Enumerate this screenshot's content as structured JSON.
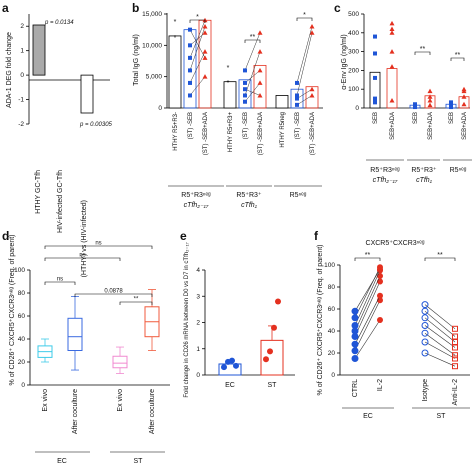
{
  "chart_data": [
    {
      "panel": "a",
      "type": "bar",
      "ylabel": "ADA-1 DEG fold change",
      "ylim": [
        -2,
        2.5
      ],
      "yticks": [
        -2,
        -1,
        0,
        1,
        2
      ],
      "categories": [
        "HTHY GC-Tfh",
        "HIV-infected GC-Tfh",
        "(HTHY) vs (HIV-infected)"
      ],
      "values": [
        2.05,
        null,
        -1.55
      ],
      "annotations": [
        "p = 0.0134",
        "p = 0.00305"
      ],
      "colors": {
        "bar1": "#aaaaaa",
        "bar2": "#ffffff"
      }
    },
    {
      "panel": "b",
      "type": "bar",
      "ylabel": "Total IgG (ng/ml)",
      "ylim": [
        0,
        15000
      ],
      "yticks": [
        0,
        5000,
        10000,
        15000
      ],
      "ytick_labels": [
        "0",
        "5,000",
        "10,000",
        "15,000"
      ],
      "categories": [
        "HTHY R5+R3-",
        "(ST) -SEB",
        "(ST) -SEB+ADA",
        "HTHY R5+R3+",
        "(ST) -SEB",
        "(ST) -SEB+ADA",
        "HTHY R5neg",
        "(ST) -SEB",
        "(ST) -SEB+ADA"
      ],
      "values": [
        11500,
        12500,
        14000,
        4200,
        4500,
        6800,
        2000,
        3000,
        3400
      ],
      "groups": [
        {
          "label": "R5⁺R3ⁿᵉᵍ",
          "sub": "cTfh₂₋₁₇"
        },
        {
          "label": "R5⁺R3⁺",
          "sub": "cTfh₁"
        },
        {
          "label": "R5ⁿᵉᵍ",
          "sub": ""
        }
      ],
      "significance": [
        "*",
        "**",
        "*"
      ],
      "asterisks_above": [
        "*",
        "*",
        "*",
        "*"
      ],
      "colors": {
        "blue": "#1f55d6",
        "red": "#e4301f"
      }
    },
    {
      "panel": "c",
      "type": "bar",
      "ylabel": "α-Env IgG (ng/ml)",
      "ylim": [
        0,
        500
      ],
      "yticks": [
        0,
        100,
        200,
        300,
        400,
        500
      ],
      "categories": [
        "SEB",
        "SEB+ADA",
        "SEB",
        "SEB+ADA",
        "SEB",
        "SEB+ADA"
      ],
      "values": [
        190,
        210,
        15,
        65,
        20,
        60
      ],
      "groups": [
        {
          "label": "R5⁺R3ⁿᵉᵍ",
          "sub": "cTfh₂₋₁₇"
        },
        {
          "label": "R5⁺R3⁺",
          "sub": "cTfh₁"
        },
        {
          "label": "R5ⁿᵉᵍ",
          "sub": ""
        }
      ],
      "significance": [
        "**",
        "**"
      ]
    },
    {
      "panel": "d",
      "type": "box",
      "ylabel": "% of CD26⁺ CXCR5⁺CXCR3ⁿᵉᵍ (Freq. of parent)",
      "ylim": [
        0,
        100
      ],
      "yticks": [
        0,
        20,
        40,
        60,
        80,
        100
      ],
      "categories": [
        "Ex vivo",
        "After coculture",
        "Ex vivo",
        "After coculture"
      ],
      "groups": [
        "EC",
        "ST"
      ],
      "series": [
        {
          "name": "EC Ex vivo",
          "min": 20,
          "q1": 24,
          "median": 29,
          "q3": 34,
          "max": 40,
          "color": "#3ecbe8"
        },
        {
          "name": "EC After coculture",
          "min": 13,
          "q1": 30,
          "median": 42,
          "q3": 58,
          "max": 77,
          "color": "#3a6ae0"
        },
        {
          "name": "ST Ex vivo",
          "min": 10,
          "q1": 15,
          "median": 19,
          "q3": 25,
          "max": 33,
          "color": "#f08ad0"
        },
        {
          "name": "ST After coculture",
          "min": 30,
          "q1": 42,
          "median": 55,
          "q3": 68,
          "max": 83,
          "color": "#f05a3c"
        }
      ],
      "comparisons": [
        "ns",
        "ns",
        "ns",
        "0.0878",
        "**"
      ]
    },
    {
      "panel": "e",
      "type": "bar",
      "ylabel": "Fold change in CD26 mRNA between D0 vs D7 in cTfh₂₋₁₇",
      "ylim": [
        0,
        4
      ],
      "yticks": [
        0,
        1,
        2,
        3,
        4
      ],
      "categories": [
        "EC",
        "ST"
      ],
      "values": [
        0.42,
        1.32
      ],
      "errors": [
        0.1,
        0.55
      ],
      "points": [
        [
          0.3,
          0.5,
          0.55,
          0.35
        ],
        [
          0.6,
          0.9,
          1.8,
          2.8
        ]
      ],
      "colors": {
        "EC": "#1f55d6",
        "ST": "#e4301f"
      }
    },
    {
      "panel": "f",
      "type": "line",
      "title": "CXCR5⁺CXCR3ⁿᵉᵍ",
      "ylabel": "% of CD26⁺ CXCR5⁺CXCR3ⁿᵉᵍ (Freq. of parent)",
      "ylim": [
        0,
        100
      ],
      "yticks": [
        0,
        20,
        40,
        60,
        80,
        100
      ],
      "categories": [
        "CTRL",
        "IL-2",
        "Isotype",
        "Anti-IL-2"
      ],
      "groups": [
        "EC",
        "ST"
      ],
      "significance": [
        "**",
        "**"
      ],
      "series": [
        {
          "name": "EC",
          "pairs": [
            [
              15,
              50
            ],
            [
              22,
              68
            ],
            [
              28,
              72
            ],
            [
              35,
              85
            ],
            [
              40,
              90
            ],
            [
              45,
              95
            ],
            [
              52,
              98
            ],
            [
              58,
              96
            ]
          ],
          "color": "#1f55d6",
          "color2": "#e4301f"
        },
        {
          "name": "ST",
          "pairs": [
            [
              20,
              8
            ],
            [
              30,
              15
            ],
            [
              38,
              18
            ],
            [
              45,
              25
            ],
            [
              52,
              30
            ],
            [
              58,
              35
            ],
            [
              64,
              42
            ]
          ],
          "color": "#1f55d6",
          "color2": "#e4301f"
        }
      ]
    }
  ]
}
